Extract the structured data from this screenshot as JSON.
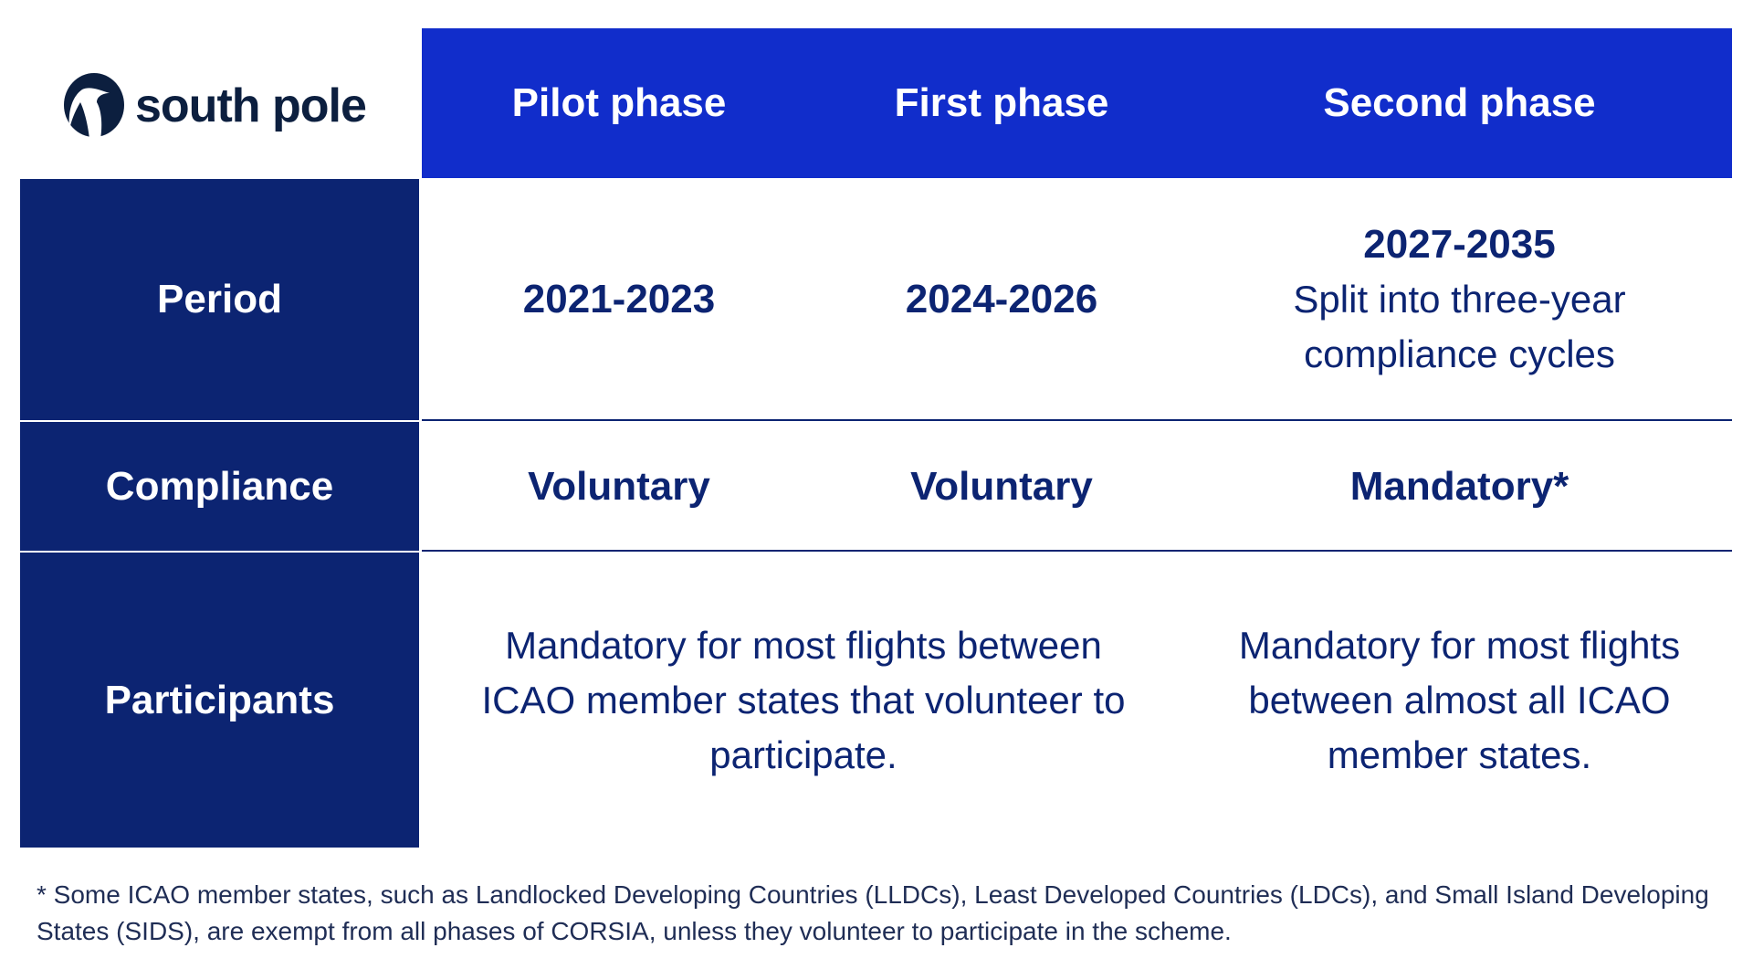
{
  "brand": {
    "name": "south pole",
    "logo_icon": "penguin-icon",
    "color": "#0c1f3f"
  },
  "colors": {
    "header": "#112dcb",
    "label": "#0c2472",
    "text": "#0c2472"
  },
  "header": {
    "columns": [
      "Pilot phase",
      "First phase",
      "Second phase"
    ]
  },
  "rows": {
    "period": {
      "label": "Period",
      "pilot": "2021-2023",
      "first": "2024-2026",
      "second_title": "2027-2035",
      "second_note": "Split into three-year compliance cycles"
    },
    "compliance": {
      "label": "Compliance",
      "pilot": "Voluntary",
      "first": "Voluntary",
      "second": "Mandatory*"
    },
    "participants": {
      "label": "Participants",
      "pilot_first": "Mandatory for most flights between ICAO member states that volunteer to participate.",
      "second": "Mandatory for most flights between almost all ICAO member states."
    }
  },
  "footnote": "* Some ICAO member states, such as Landlocked Developing Countries (LLDCs), Least Developed Countries (LDCs), and Small Island Developing States (SIDS), are exempt from all phases of CORSIA, unless they volunteer to participate in the scheme."
}
